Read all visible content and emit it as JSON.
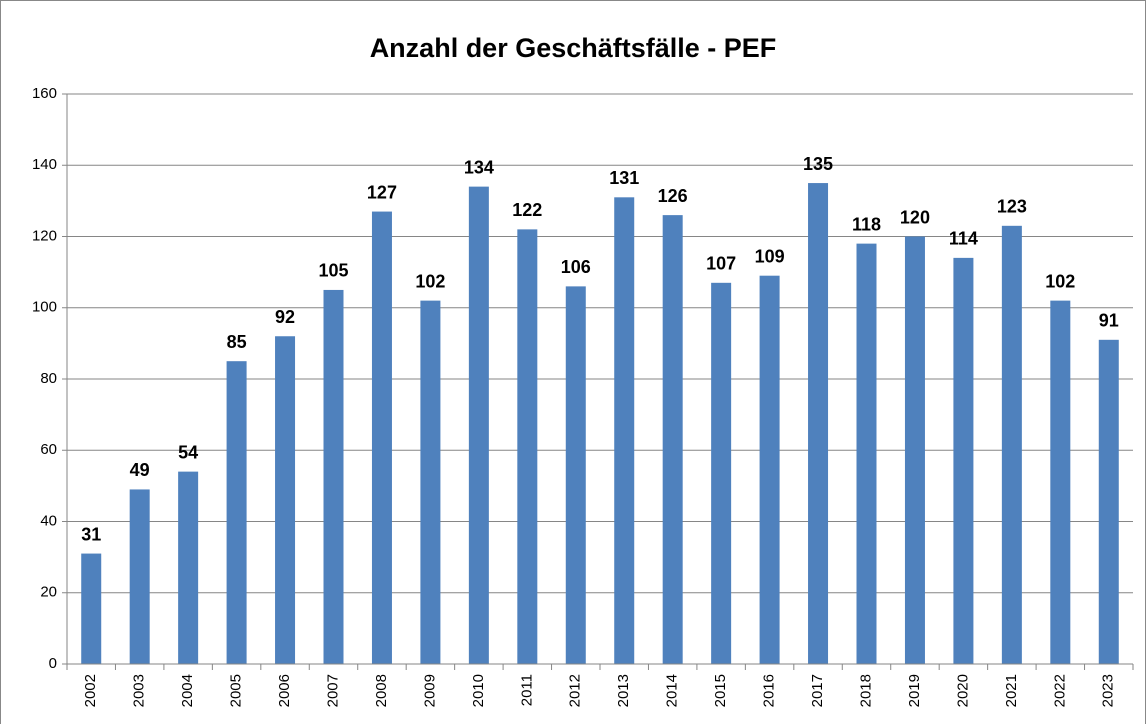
{
  "chart_data": {
    "type": "bar",
    "title": "Anzahl der Geschäftsfälle - PEF",
    "categories": [
      "2002",
      "2003",
      "2004",
      "2005",
      "2006",
      "2007",
      "2008",
      "2009",
      "2010",
      "2011",
      "2012",
      "2013",
      "2014",
      "2015",
      "2016",
      "2017",
      "2018",
      "2019",
      "2020",
      "2021",
      "2022",
      "2023"
    ],
    "values": [
      31,
      49,
      54,
      85,
      92,
      105,
      127,
      102,
      134,
      122,
      106,
      131,
      126,
      107,
      109,
      135,
      118,
      120,
      114,
      123,
      102,
      91
    ],
    "color": "#4f81bd",
    "ylim": [
      0,
      160
    ],
    "yticks": [
      0,
      20,
      40,
      60,
      80,
      100,
      120,
      140,
      160
    ],
    "grid": true
  }
}
